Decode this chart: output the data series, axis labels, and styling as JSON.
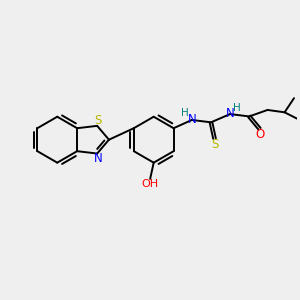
{
  "background_color": "#efefef",
  "atom_colors": {
    "S": "#b8b800",
    "N": "#0000ff",
    "O": "#ff0000",
    "H": "#008080",
    "C": "#000000"
  },
  "figsize": [
    3.0,
    3.0
  ],
  "dpi": 100
}
